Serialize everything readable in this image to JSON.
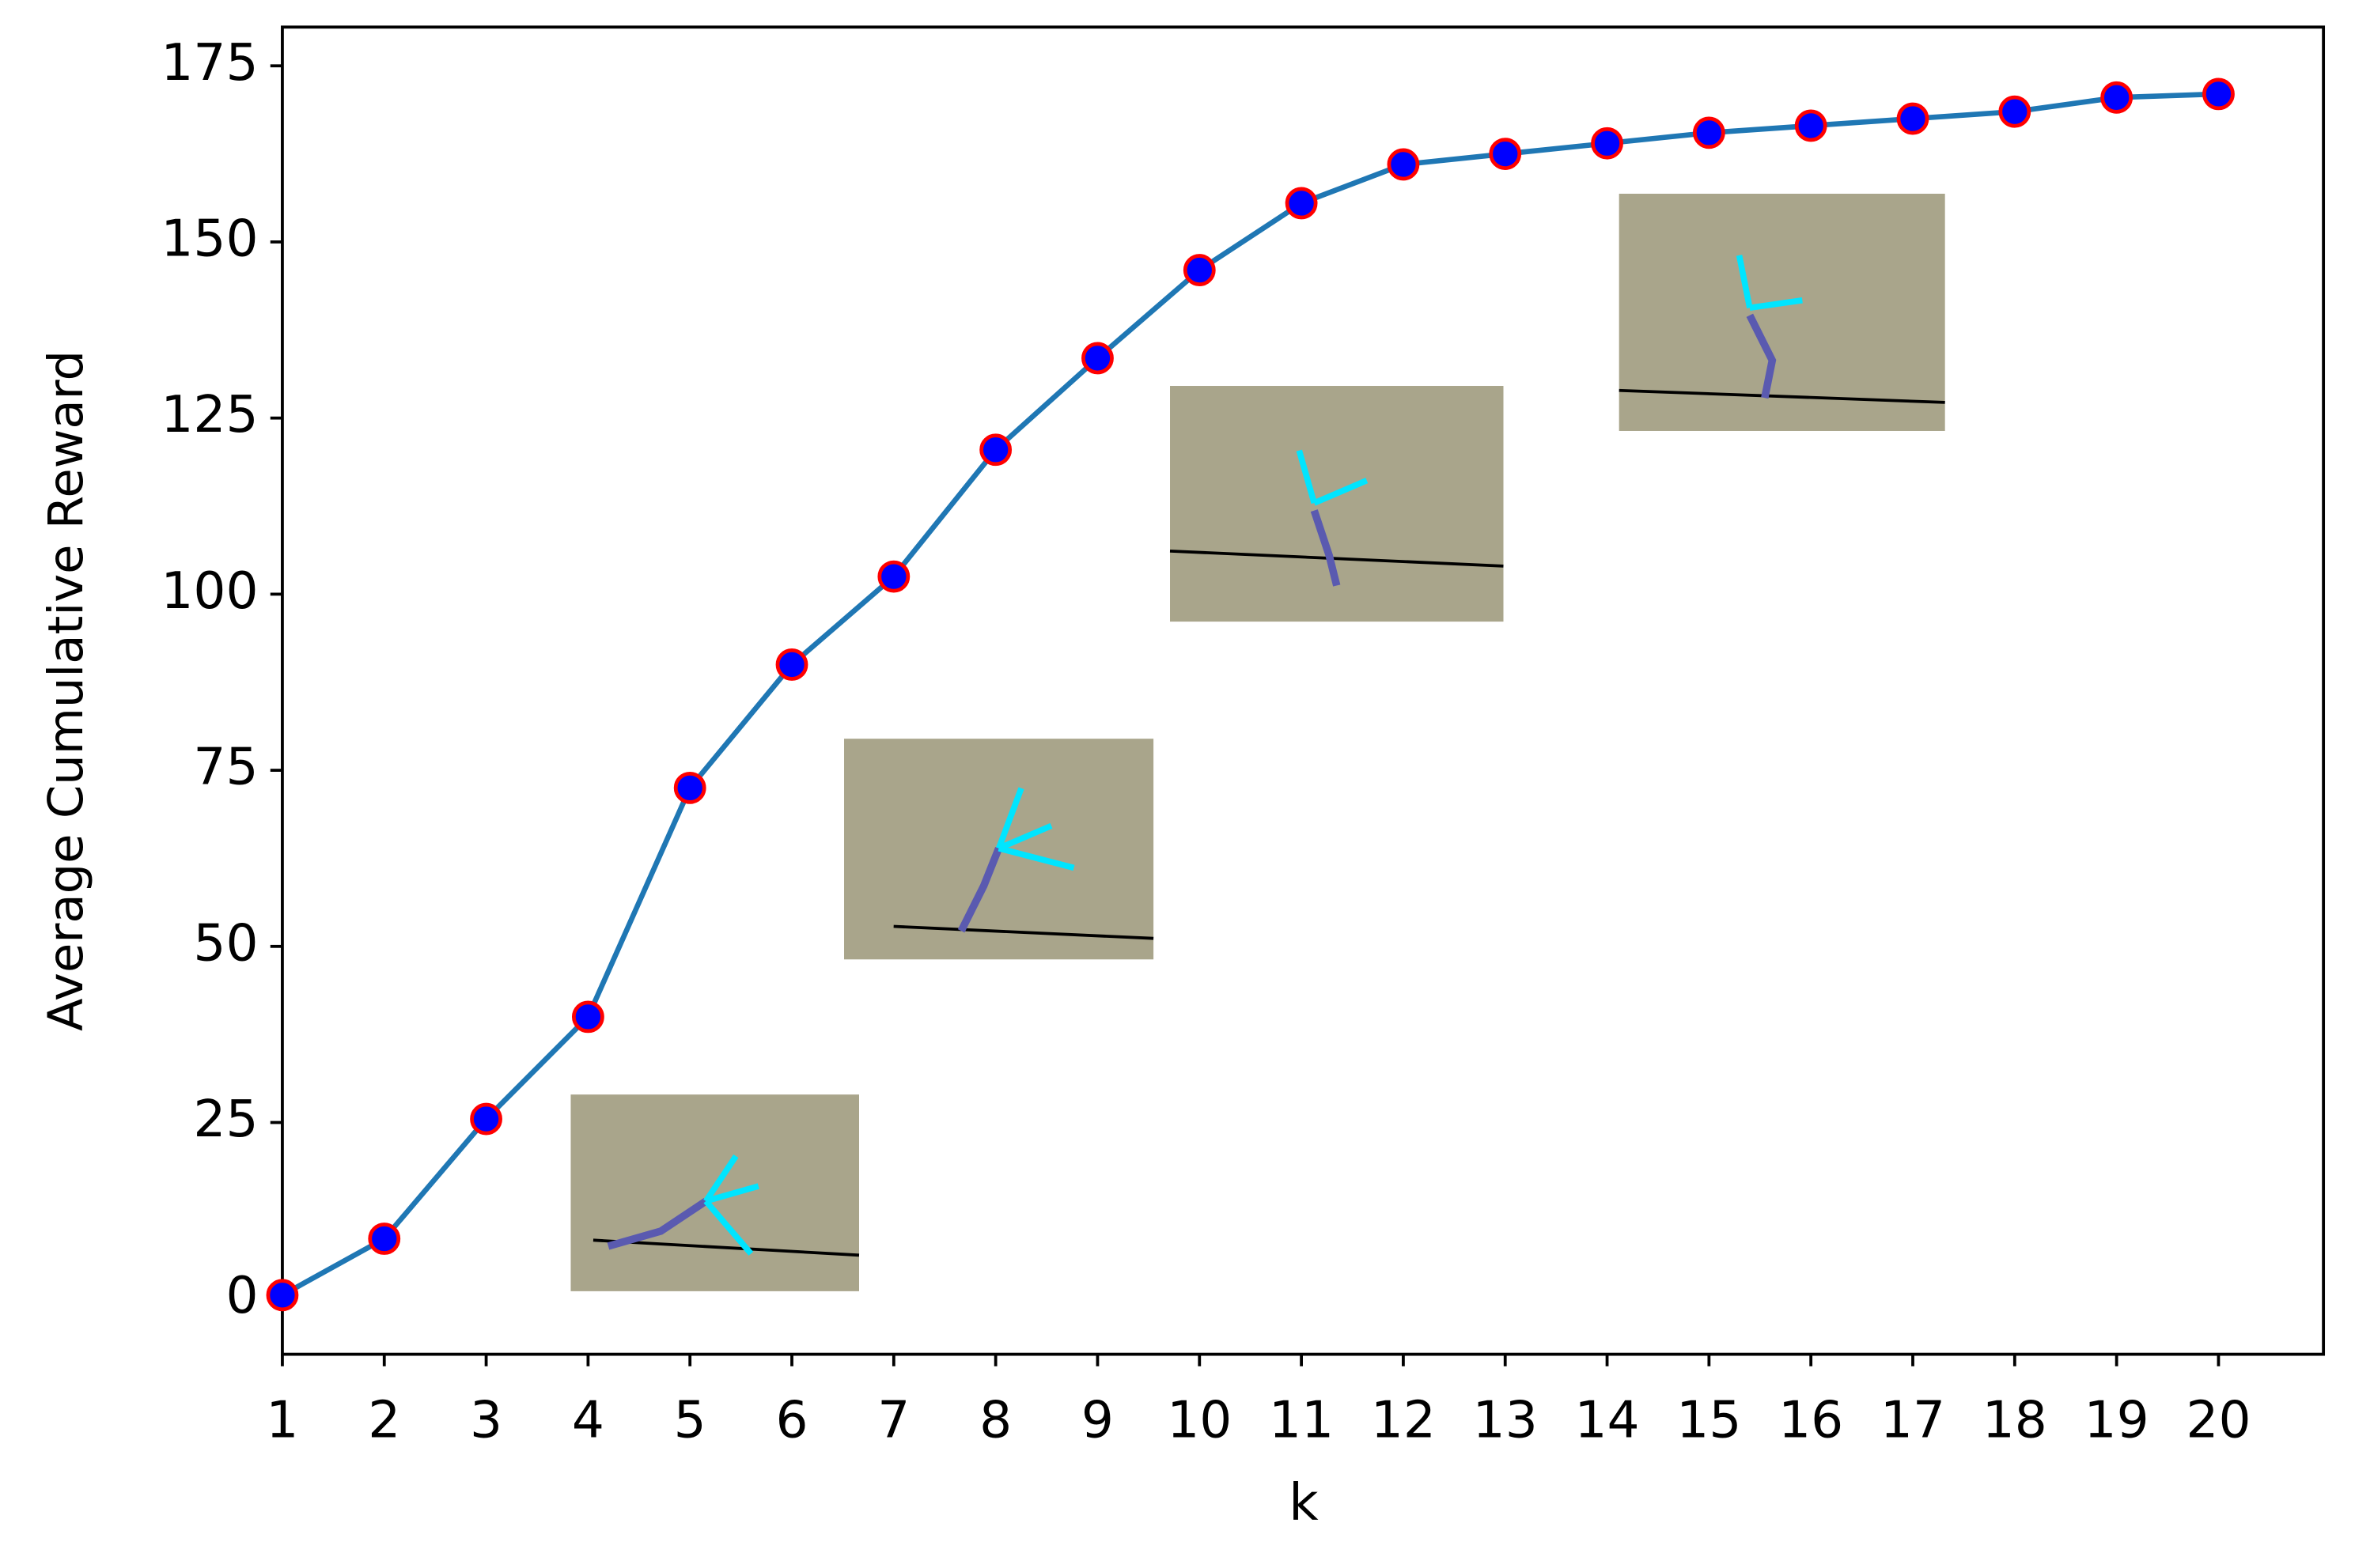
{
  "chart_data": {
    "type": "line",
    "x_label": "k",
    "y_label": "Average Cumulative Reward",
    "x": [
      1,
      2,
      3,
      4,
      5,
      6,
      7,
      8,
      9,
      10,
      11,
      12,
      13,
      14,
      15,
      16,
      17,
      18,
      19,
      20
    ],
    "series": [
      {
        "color": "#1f77b4",
        "marker_color": "#0000ff",
        "marker_edge_color": "#ff0000",
        "values": [
          0.5,
          8.5,
          25.5,
          40,
          72.5,
          90,
          102.5,
          120.5,
          133.5,
          146,
          155.5,
          161,
          162.5,
          164,
          165.5,
          166.5,
          167.5,
          168.5,
          170.5,
          171
        ]
      }
    ],
    "xlim": [
      1,
      21.03
    ],
    "ylim": [
      -7.9,
      180.5
    ],
    "xticks": [
      1,
      2,
      3,
      4,
      5,
      6,
      7,
      8,
      9,
      10,
      11,
      12,
      13,
      14,
      15,
      16,
      17,
      18,
      19,
      20
    ],
    "yticks": [
      0,
      25,
      50,
      75,
      100,
      125,
      150,
      175
    ],
    "grid": false
  }
}
